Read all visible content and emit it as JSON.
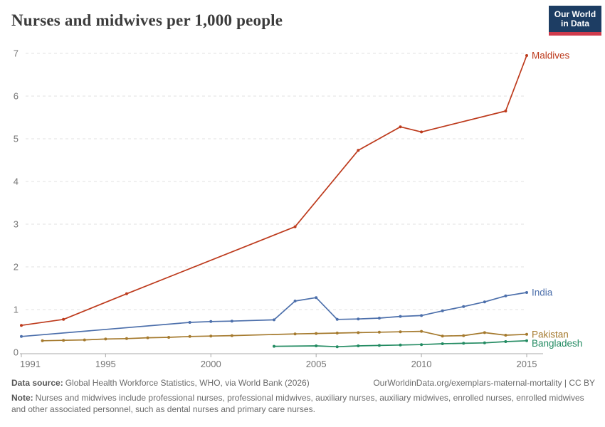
{
  "header": {
    "logo": {
      "line1": "Our World",
      "line2": "in Data",
      "bg_color": "#1d3d63",
      "stripe_color": "#cf3b4c"
    }
  },
  "chart_data": {
    "type": "line",
    "title": "Nurses and midwives per 1,000 people",
    "xlabel": "",
    "ylabel": "",
    "xlim": [
      1991,
      2015
    ],
    "ylim": [
      0,
      7
    ],
    "xticks": [
      1991,
      1995,
      2000,
      2005,
      2010,
      2015
    ],
    "yticks": [
      0,
      1,
      2,
      3,
      4,
      5,
      6,
      7
    ],
    "grid": "horizontal-dashed",
    "legend_position": "end-of-line-labels",
    "grid_color": "#e2e2e2",
    "axis_color": "#a8a8a8",
    "tick_label_color": "#757575",
    "series": [
      {
        "name": "Maldives",
        "color": "#bd3a1c",
        "x": [
          1991,
          1993,
          1996,
          2004,
          2007,
          2009,
          2010,
          2014,
          2015
        ],
        "y": [
          0.63,
          0.77,
          1.37,
          2.94,
          4.73,
          5.28,
          5.16,
          5.65,
          6.95
        ]
      },
      {
        "name": "India",
        "color": "#4c6fab",
        "x": [
          1991,
          1999,
          2000,
          2001,
          2003,
          2004,
          2005,
          2006,
          2007,
          2008,
          2009,
          2010,
          2011,
          2012,
          2013,
          2014,
          2015
        ],
        "y": [
          0.37,
          0.7,
          0.72,
          0.73,
          0.76,
          1.2,
          1.28,
          0.77,
          0.78,
          0.8,
          0.84,
          0.86,
          0.97,
          1.07,
          1.18,
          1.32,
          1.4
        ]
      },
      {
        "name": "Pakistan",
        "color": "#a57a2e",
        "x": [
          1992,
          1993,
          1994,
          1995,
          1996,
          1997,
          1998,
          1999,
          2000,
          2001,
          2004,
          2005,
          2006,
          2007,
          2008,
          2009,
          2010,
          2011,
          2012,
          2013,
          2014,
          2015
        ],
        "y": [
          0.27,
          0.28,
          0.29,
          0.31,
          0.32,
          0.34,
          0.35,
          0.37,
          0.38,
          0.39,
          0.43,
          0.44,
          0.45,
          0.46,
          0.47,
          0.48,
          0.49,
          0.38,
          0.39,
          0.46,
          0.4,
          0.42
        ]
      },
      {
        "name": "Bangladesh",
        "color": "#238b62",
        "x": [
          2003,
          2005,
          2006,
          2007,
          2008,
          2009,
          2010,
          2011,
          2012,
          2013,
          2014,
          2015
        ],
        "y": [
          0.14,
          0.15,
          0.13,
          0.15,
          0.16,
          0.17,
          0.18,
          0.2,
          0.21,
          0.22,
          0.25,
          0.27
        ]
      }
    ]
  },
  "footer": {
    "data_source_label": "Data source:",
    "data_source_text": "Global Health Workforce Statistics, WHO, via World Bank (2026)",
    "link_text": "OurWorldinData.org/exemplars-maternal-mortality | CC BY",
    "note_label": "Note:",
    "note_text": "Nurses and midwives include professional nurses, professional midwives, auxiliary nurses, auxiliary midwives, enrolled nurses, enrolled midwives and other associated personnel, such as dental nurses and primary care nurses."
  }
}
